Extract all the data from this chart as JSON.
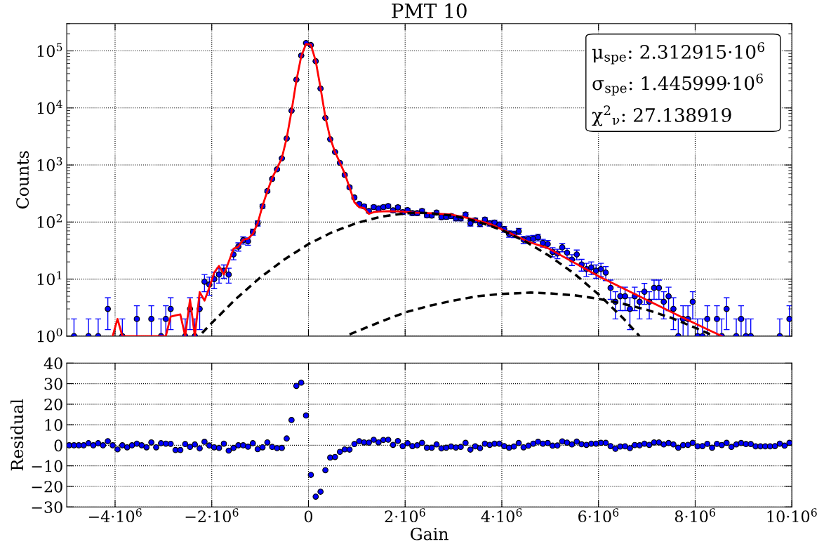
{
  "chart_data": [
    {
      "type": "scatter",
      "title": "PMT 10",
      "ylabel": "Counts",
      "log": "y",
      "grid": true,
      "tick_labels": "y",
      "marker": "circle",
      "xlim": [
        -5000000,
        10000000
      ],
      "xticks": [
        {
          "value": -4000000,
          "label": null
        },
        {
          "value": -2000000,
          "label": null
        },
        {
          "value": 0,
          "label": null
        },
        {
          "value": 2000000,
          "label": null
        },
        {
          "value": 4000000,
          "label": null
        },
        {
          "value": 6000000,
          "label": null
        },
        {
          "value": 8000000,
          "label": null
        },
        {
          "value": 10000000,
          "label": null
        }
      ],
      "ylim": [
        1,
        300000
      ],
      "yticks": [
        {
          "value": 1,
          "label": "10$^{0}$"
        },
        {
          "value": 10,
          "label": "10$^{1}$"
        },
        {
          "value": 100,
          "label": "10$^{2}$"
        },
        {
          "value": 1000,
          "label": "10$^{3}$"
        },
        {
          "value": 10000,
          "label": "10$^{4}$"
        },
        {
          "value": 100000,
          "label": "10$^{5}$"
        }
      ],
      "annotations": [
        "μ$_{spe}$: 2.312915·10$^{6}$",
        "σ$_{spe}$: 1.445999·10$^{6}$",
        "χ$^{2}$$_{ν}$: 27.138919"
      ],
      "x": [
        -4850000,
        -4750000,
        -4650000,
        -4550000,
        -4450000,
        -4350000,
        -4250000,
        -4150000,
        -4050000,
        -3950000,
        -3850000,
        -3750000,
        -3650000,
        -3550000,
        -3450000,
        -3350000,
        -3250000,
        -3150000,
        -3050000,
        -2950000,
        -2850000,
        -2750000,
        -2650000,
        -2550000,
        -2450000,
        -2350000,
        -2250000,
        -2150000,
        -2050000,
        -1950000,
        -1850000,
        -1750000,
        -1650000,
        -1550000,
        -1450000,
        -1350000,
        -1250000,
        -1150000,
        -1050000,
        -950000,
        -850000,
        -750000,
        -650000,
        -550000,
        -450000,
        -350000,
        -250000,
        -150000,
        -50000,
        50000,
        150000,
        250000,
        350000,
        450000,
        550000,
        650000,
        750000,
        850000,
        950000,
        1050000,
        1150000,
        1250000,
        1350000,
        1450000,
        1550000,
        1650000,
        1750000,
        1850000,
        1950000,
        2050000,
        2150000,
        2250000,
        2350000,
        2450000,
        2550000,
        2650000,
        2750000,
        2850000,
        2950000,
        3050000,
        3150000,
        3250000,
        3350000,
        3450000,
        3550000,
        3650000,
        3750000,
        3850000,
        3950000,
        4050000,
        4150000,
        4250000,
        4350000,
        4450000,
        4550000,
        4650000,
        4750000,
        4850000,
        4950000,
        5050000,
        5150000,
        5250000,
        5350000,
        5450000,
        5550000,
        5650000,
        5750000,
        5850000,
        5950000,
        6050000,
        6150000,
        6250000,
        6350000,
        6450000,
        6550000,
        6650000,
        6750000,
        6850000,
        6950000,
        7050000,
        7150000,
        7250000,
        7350000,
        7450000,
        7550000,
        7650000,
        7750000,
        7850000,
        7950000,
        8050000,
        8150000,
        8250000,
        8350000,
        8450000,
        8550000,
        8650000,
        8750000,
        8850000,
        8950000,
        9050000,
        9150000,
        9250000,
        9350000,
        9450000,
        9550000,
        9650000,
        9750000,
        9850000,
        9950000
      ],
      "series": [
        {
          "type": "scatter",
          "color": "#0000ff",
          "values": [
            1,
            null,
            null,
            1,
            null,
            1,
            null,
            3,
            null,
            null,
            1,
            null,
            null,
            2,
            null,
            null,
            2,
            null,
            1,
            2,
            3,
            null,
            null,
            1,
            3,
            1,
            3,
            9,
            8,
            10,
            12,
            14,
            12,
            27,
            37,
            48,
            46,
            67,
            95,
            189,
            349,
            570,
            840,
            1310,
            2910,
            8950,
            31300,
            82800,
            137700,
            126500,
            66000,
            21900,
            6680,
            2830,
            1690,
            1090,
            670,
            405,
            269,
            207,
            188,
            156,
            183,
            173,
            183,
            190,
            160,
            181,
            149,
            162,
            143,
            143,
            156,
            131,
            130,
            146,
            122,
            123,
            127,
            116,
            116,
            135,
            95,
            107,
            93,
            110,
            95,
            98,
            90,
            75,
            62,
            61,
            69,
            49,
            50,
            51,
            54,
            43,
            41,
            30,
            28,
            36,
            29,
            22,
            27,
            18,
            15,
            16,
            14,
            15,
            13,
            7,
            4,
            5,
            5,
            3,
            5,
            4,
            6,
            4,
            7,
            7,
            4,
            5,
            3,
            1,
            2,
            2,
            4,
            1,
            1,
            2,
            null,
            2,
            1,
            3,
            null,
            1,
            2,
            1,
            1,
            null,
            null,
            null,
            null,
            null,
            1,
            null,
            2
          ],
          "errors": [
            1,
            null,
            null,
            1,
            null,
            1,
            null,
            1.7,
            null,
            null,
            1,
            null,
            null,
            1.4,
            null,
            null,
            1.4,
            null,
            1,
            1.4,
            1.7,
            null,
            null,
            1,
            1.7,
            1,
            1.7,
            3,
            2.8,
            3.2,
            3.5,
            3.7,
            3.5,
            5.2,
            6.1,
            6.9,
            6.8,
            8.2,
            9.7,
            14,
            19,
            24,
            29,
            36,
            54,
            95,
            177,
            288,
            371,
            356,
            257,
            148,
            82,
            53,
            41,
            33,
            26,
            20,
            16,
            14,
            14,
            12,
            14,
            13,
            14,
            14,
            13,
            13,
            12,
            13,
            12,
            12,
            12,
            11,
            11,
            12,
            11,
            11,
            11,
            11,
            11,
            12,
            9.7,
            10,
            9.6,
            10,
            9.7,
            9.9,
            9.5,
            8.7,
            7.9,
            7.8,
            8.3,
            7,
            7.1,
            7.1,
            7.3,
            6.6,
            6.4,
            5.5,
            5.3,
            6,
            5.4,
            4.7,
            5.2,
            4.2,
            3.9,
            4,
            3.7,
            3.9,
            3.6,
            2.6,
            2,
            2.2,
            2.2,
            1.7,
            2.2,
            2,
            2.4,
            2,
            2.6,
            2.6,
            2,
            2.2,
            1.7,
            1,
            1.4,
            1.4,
            2,
            1,
            1,
            1.4,
            null,
            1.4,
            1,
            1.7,
            null,
            1,
            1.4,
            1,
            1,
            null,
            null,
            null,
            null,
            null,
            1,
            null,
            1.4
          ]
        },
        {
          "type": "line",
          "color": "#ff0000",
          "marker": "none",
          "x": [
            -4050000,
            -3950000,
            -3850000,
            -3050000,
            -2950000,
            -2850000,
            -2750000,
            -2650000,
            -2550000,
            -2450000,
            -2350000,
            -2250000,
            -2150000,
            -2050000,
            -1950000,
            -1850000,
            -1750000,
            -1650000,
            -1550000,
            -1450000,
            -1350000,
            -1250000,
            -1150000,
            -1050000,
            -950000,
            -850000,
            -750000,
            -650000,
            -550000,
            -450000,
            -350000,
            -250000,
            -150000,
            -50000,
            50000,
            150000,
            250000,
            350000,
            450000,
            550000,
            650000,
            750000,
            850000,
            950000,
            1050000,
            1150000,
            1250000,
            1350000,
            1450000,
            1650000,
            1950000,
            2150000,
            2550000,
            2950000,
            3350000,
            3750000,
            4150000,
            4550000,
            4950000,
            6050000,
            7750000,
            8550000
          ],
          "values": [
            1,
            2,
            1,
            1,
            1,
            2.2,
            2.3,
            2.4,
            1,
            4.4,
            1,
            5.9,
            4.2,
            7.1,
            13,
            17,
            12,
            20,
            34,
            37,
            49,
            51,
            62,
            95,
            193,
            347,
            597,
            871,
            1330,
            2960,
            8790,
            29900,
            80500,
            132700,
            129000,
            66700,
            22500,
            6900,
            2960,
            1690,
            1100,
            710,
            405,
            223,
            181,
            176,
            139,
            149,
            153,
            155,
            153,
            146,
            142,
            135,
            115,
            93,
            65,
            45,
            35,
            10.7,
            2.1,
            1
          ]
        },
        {
          "type": "line",
          "color": "#000000",
          "line_style": "dashed",
          "marker": "none",
          "x": [
            -2200000,
            -2000000,
            -1500000,
            -1000000,
            -500000,
            0,
            500000,
            1000000,
            1500000,
            2000000,
            2300000,
            2500000,
            3000000,
            3500000,
            4000000,
            4500000,
            5000000,
            5500000,
            6000000,
            6500000,
            6850000
          ],
          "values": [
            1.13,
            1.7,
            4.5,
            10.6,
            22,
            41,
            67,
            96,
            124,
            142,
            145,
            143,
            129,
            102,
            72,
            45,
            25,
            12.4,
            5.4,
            2.1,
            1
          ]
        },
        {
          "type": "line",
          "color": "#000000",
          "line_style": "dashed",
          "marker": "none",
          "x": [
            850000,
            1500000,
            2000000,
            2500000,
            3000000,
            3500000,
            4000000,
            4600000,
            5000000,
            5500000,
            6000000,
            6500000,
            7000000,
            7500000,
            8000000,
            8400000
          ],
          "values": [
            1.07,
            1.8,
            2.6,
            3.4,
            4.2,
            5,
            5.5,
            5.8,
            5.6,
            5.2,
            4.5,
            3.7,
            2.9,
            2.1,
            1.4,
            1
          ]
        }
      ]
    },
    {
      "type": "scatter",
      "xlabel": "Gain",
      "ylabel": "Residual",
      "grid": true,
      "marker": "circle",
      "xlim": [
        -5000000,
        10000000
      ],
      "xticks": [
        {
          "value": -4000000,
          "label": "−4·10$^{6}$"
        },
        {
          "value": -2000000,
          "label": "−2·10$^{6}$"
        },
        {
          "value": 0,
          "label": "0"
        },
        {
          "value": 2000000,
          "label": "2·10$^{6}$"
        },
        {
          "value": 4000000,
          "label": "4·10$^{6}$"
        },
        {
          "value": 6000000,
          "label": "6·10$^{6}$"
        },
        {
          "value": 8000000,
          "label": "8·10$^{6}$"
        },
        {
          "value": 10000000,
          "label": "10·10$^{6}$"
        }
      ],
      "ylim": [
        -30,
        40
      ],
      "yticks": [
        {
          "value": -30,
          "label": "−30"
        },
        {
          "value": -20,
          "label": "−20"
        },
        {
          "value": -10,
          "label": "−10"
        },
        0,
        10,
        20,
        30,
        40
      ],
      "x": [
        -4950000,
        -4850000,
        -4750000,
        -4650000,
        -4550000,
        -4450000,
        -4350000,
        -4250000,
        -4150000,
        -4050000,
        -3950000,
        -3850000,
        -3750000,
        -3650000,
        -3550000,
        -3450000,
        -3350000,
        -3250000,
        -3150000,
        -3050000,
        -2950000,
        -2850000,
        -2750000,
        -2650000,
        -2550000,
        -2450000,
        -2350000,
        -2250000,
        -2150000,
        -2050000,
        -1950000,
        -1850000,
        -1750000,
        -1650000,
        -1550000,
        -1450000,
        -1350000,
        -1250000,
        -1150000,
        -1050000,
        -950000,
        -850000,
        -750000,
        -650000,
        -550000,
        -450000,
        -350000,
        -250000,
        -150000,
        -50000,
        50000,
        150000,
        250000,
        350000,
        450000,
        550000,
        650000,
        750000,
        850000,
        950000,
        1050000,
        1150000,
        1250000,
        1350000,
        1450000,
        1550000,
        1650000,
        1750000,
        1850000,
        1950000,
        2050000,
        2150000,
        2250000,
        2350000,
        2450000,
        2550000,
        2650000,
        2750000,
        2850000,
        2950000,
        3050000,
        3150000,
        3250000,
        3350000,
        3450000,
        3550000,
        3650000,
        3750000,
        3850000,
        3950000,
        4050000,
        4150000,
        4250000,
        4350000,
        4450000,
        4550000,
        4650000,
        4750000,
        4850000,
        4950000,
        5050000,
        5150000,
        5250000,
        5350000,
        5450000,
        5550000,
        5650000,
        5750000,
        5850000,
        5950000,
        6050000,
        6150000,
        6250000,
        6350000,
        6450000,
        6550000,
        6650000,
        6750000,
        6850000,
        6950000,
        7050000,
        7150000,
        7250000,
        7350000,
        7450000,
        7550000,
        7650000,
        7750000,
        7850000,
        7950000,
        8050000,
        8150000,
        8250000,
        8350000,
        8450000,
        8550000,
        8650000,
        8750000,
        8850000,
        8950000,
        9050000,
        9150000,
        9250000,
        9350000,
        9450000,
        9550000,
        9650000,
        9750000,
        9850000,
        9950000
      ],
      "series": [
        {
          "color": "#0000ff",
          "values": [
            0,
            0,
            0,
            0,
            1,
            0,
            1,
            0,
            2,
            0,
            -2,
            0,
            -1,
            0,
            0.8,
            0,
            -1,
            1.4,
            -1,
            1,
            0.8,
            0.7,
            -2.3,
            -2.3,
            0.6,
            -0.8,
            0.4,
            -1.5,
            1.7,
            -0.1,
            -1,
            -1.3,
            0.8,
            -2.6,
            -1.3,
            0,
            0,
            -0.7,
            1,
            -1.9,
            -1,
            1.4,
            -0.8,
            -1.4,
            -1.3,
            3.3,
            12.3,
            28.9,
            30.5,
            14.5,
            -14.4,
            -25,
            -22.6,
            -12.1,
            -6,
            -5.7,
            -3.2,
            -2,
            -2.1,
            0.6,
            2,
            1.4,
            1.3,
            2.7,
            1.4,
            2.6,
            2.7,
            0.2,
            2.1,
            -0.4,
            1,
            -0.4,
            0,
            1.2,
            -1.2,
            -1.2,
            0.4,
            -1.5,
            -1.2,
            -0.6,
            -1.1,
            -0.8,
            1.2,
            -2.1,
            -0.5,
            -1.4,
            0.8,
            0.2,
            0.8,
            0.8,
            -0.4,
            -1.2,
            -0.6,
            1.1,
            -1,
            -0.2,
            0.8,
            1.7,
            0.8,
            1.1,
            -0.2,
            -0.1,
            1.9,
            1.3,
            0.4,
            1.8,
            0.5,
            0.2,
            0.8,
            0.8,
            1.2,
            1.2,
            -0.4,
            -1.7,
            -0.6,
            -0.5,
            -1.4,
            0.1,
            0,
            0.8,
            0.2,
            1.4,
            1.4,
            0.4,
            1.1,
            0.4,
            -1.2,
            0.1,
            0.2,
            1.2,
            -0.5,
            -0.4,
            0.7,
            -1.2,
            0.7,
            0.1,
            1.2,
            -0.8,
            0.4,
            1.1,
            0.6,
            0.6,
            -0.5,
            -0.5,
            -0.5,
            -0.5,
            -0.4,
            0.8,
            -0.2,
            1.2
          ]
        }
      ]
    }
  ]
}
